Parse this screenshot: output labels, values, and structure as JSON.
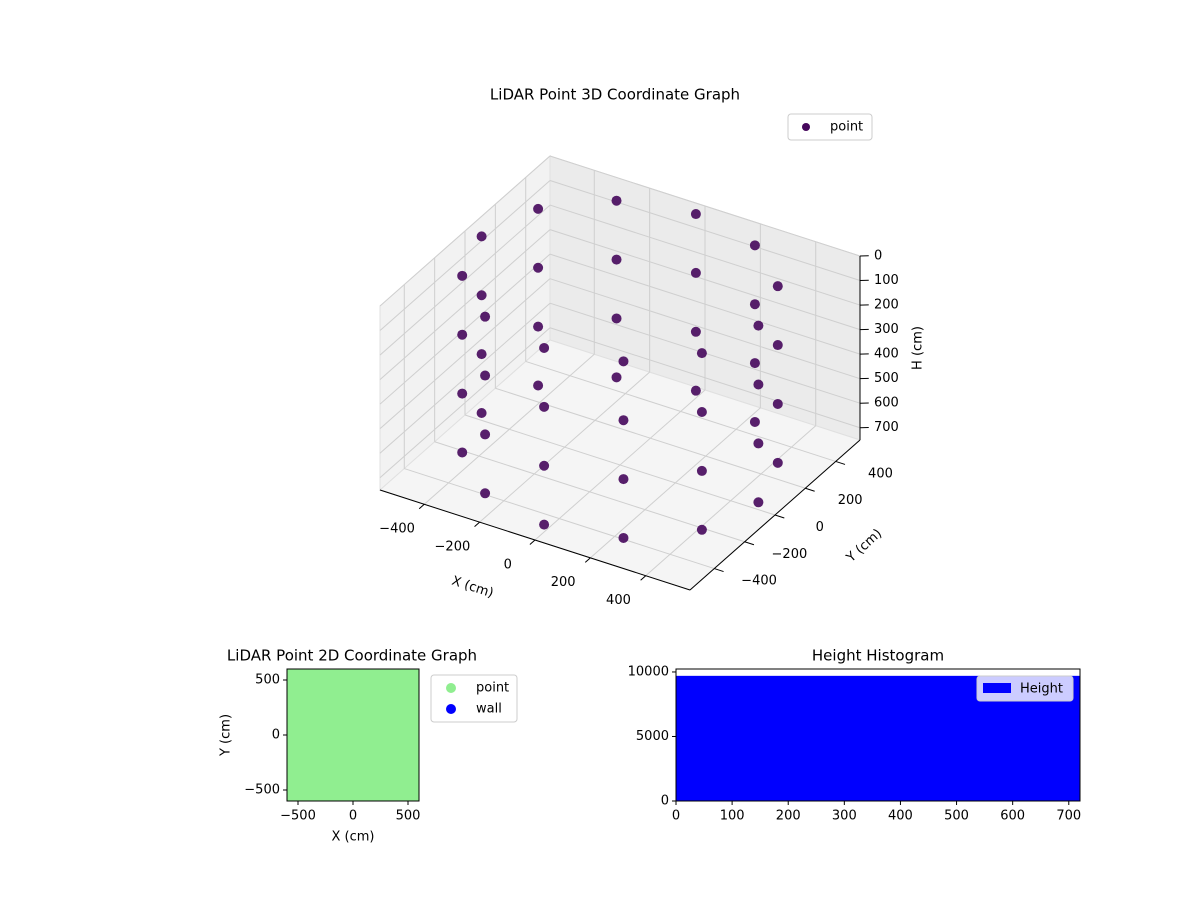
{
  "chart_data": [
    {
      "type": "scatter3d",
      "title": "LiDAR Point 3D Coordinate Graph",
      "xlabel": "X (cm)",
      "ylabel": "Y (cm)",
      "zlabel": "H (cm)",
      "xlim": [
        -560,
        560
      ],
      "ylim": [
        -560,
        560
      ],
      "zlim": [
        750,
        0
      ],
      "xticks": [
        {
          "value": -400,
          "label": "−400"
        },
        {
          "value": -200,
          "label": "−200"
        },
        0,
        200,
        400
      ],
      "yticks": [
        {
          "value": -400,
          "label": "−400"
        },
        {
          "value": -200,
          "label": "−200"
        },
        0,
        200,
        400
      ],
      "zticks": [
        0,
        100,
        200,
        300,
        400,
        500,
        600,
        700
      ],
      "legend": "upper right",
      "series": [
        {
          "name": "point",
          "color": "#46085c",
          "x": [
            500,
            433,
            250,
            0,
            -250,
            -433,
            -500,
            -433,
            -250,
            0,
            250,
            433,
            500,
            433,
            250,
            0,
            -250,
            -433,
            -500,
            -433,
            -250,
            0,
            250,
            433,
            500,
            433,
            250,
            0,
            -250,
            -433,
            -500,
            -433,
            -250,
            0,
            250,
            433,
            500,
            433,
            250,
            0,
            -250,
            -433,
            -500,
            -433,
            -250,
            0,
            250,
            433
          ],
          "y": [
            0,
            250,
            433,
            500,
            433,
            250,
            0,
            -250,
            -433,
            -500,
            -433,
            -250,
            0,
            250,
            433,
            500,
            433,
            250,
            0,
            -250,
            -433,
            -500,
            -433,
            -250,
            0,
            250,
            433,
            500,
            433,
            250,
            0,
            -250,
            -433,
            -500,
            -433,
            -250,
            0,
            250,
            433,
            500,
            433,
            250,
            0,
            -250,
            -433,
            -500,
            -433,
            -250
          ],
          "z": [
            0,
            0,
            0,
            0,
            0,
            0,
            0,
            0,
            0,
            0,
            0,
            0,
            240,
            240,
            240,
            240,
            240,
            240,
            240,
            240,
            240,
            240,
            240,
            240,
            480,
            480,
            480,
            480,
            480,
            480,
            480,
            480,
            480,
            480,
            480,
            480,
            720,
            720,
            720,
            720,
            720,
            720,
            720,
            720,
            720,
            720,
            720,
            720
          ]
        }
      ]
    },
    {
      "type": "scatter",
      "title": "LiDAR Point 2D Coordinate Graph",
      "xlabel": "X (cm)",
      "ylabel": "Y (cm)",
      "xlim": [
        -600,
        600
      ],
      "ylim": [
        -600,
        600
      ],
      "xticks": [
        {
          "value": -500,
          "label": "−500"
        },
        0,
        500
      ],
      "yticks": [
        {
          "value": -500,
          "label": "−500"
        },
        0,
        500
      ],
      "legend": "outside right",
      "series": [
        {
          "name": "point",
          "color": "#90ee90",
          "x": [
            -500,
            -300,
            -100,
            100,
            300,
            500,
            -500,
            -300,
            -100,
            100,
            300,
            500,
            -500,
            -300,
            -100,
            100,
            300,
            500,
            -500,
            -300,
            -100,
            100,
            300,
            500,
            -500,
            -300,
            -100,
            100,
            300,
            500,
            -500,
            -300,
            -100,
            100,
            300,
            500
          ],
          "y": [
            -500,
            -500,
            -500,
            -500,
            -500,
            -500,
            -300,
            -300,
            -300,
            -300,
            -300,
            -300,
            -100,
            -100,
            -100,
            -100,
            -100,
            -100,
            100,
            100,
            100,
            100,
            100,
            100,
            300,
            300,
            300,
            300,
            300,
            300,
            500,
            500,
            500,
            500,
            500,
            500
          ]
        },
        {
          "name": "wall",
          "color": "#0000ff",
          "x": [],
          "y": []
        }
      ]
    },
    {
      "type": "histogram",
      "title": "Height Histogram",
      "bins": [
        0,
        720
      ],
      "values": [
        9700
      ],
      "name": "Height",
      "color": "#0000ff",
      "xlim": [
        0,
        720
      ],
      "ylim": [
        0,
        10230
      ],
      "xticks": [
        0,
        100,
        200,
        300,
        400,
        500,
        600,
        700
      ],
      "yticks": [
        0,
        5000,
        10000
      ],
      "legend": "upper right"
    }
  ]
}
